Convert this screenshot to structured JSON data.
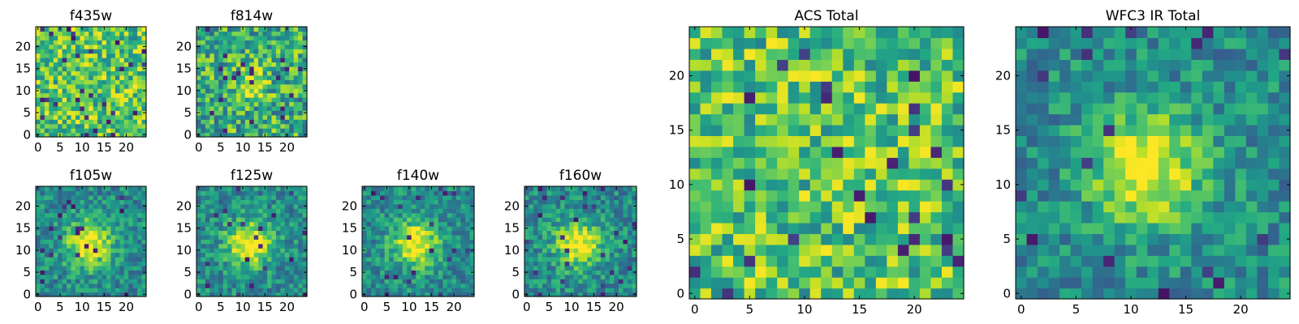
{
  "chart_data": [
    {
      "type": "heatmap",
      "title": "f435w",
      "xlim": [
        0,
        24
      ],
      "ylim": [
        0,
        24
      ],
      "xticks": [
        "0",
        "5",
        "10",
        "15",
        "20"
      ],
      "yticks": [
        "0",
        "5",
        "10",
        "15",
        "20"
      ],
      "colormap": "viridis",
      "pattern": "noise",
      "seed": 11
    },
    {
      "type": "heatmap",
      "title": "f814w",
      "xlim": [
        0,
        24
      ],
      "ylim": [
        0,
        24
      ],
      "xticks": [
        "0",
        "5",
        "10",
        "15",
        "20"
      ],
      "yticks": [
        "0",
        "5",
        "10",
        "15",
        "20"
      ],
      "colormap": "viridis",
      "pattern": "faint-source",
      "seed": 23
    },
    {
      "type": "heatmap",
      "title": "f105w",
      "xlim": [
        0,
        24
      ],
      "ylim": [
        0,
        24
      ],
      "xticks": [
        "0",
        "5",
        "10",
        "15",
        "20"
      ],
      "yticks": [
        "0",
        "5",
        "10",
        "15",
        "20"
      ],
      "colormap": "viridis",
      "pattern": "central-source",
      "seed": 37
    },
    {
      "type": "heatmap",
      "title": "f125w",
      "xlim": [
        0,
        24
      ],
      "ylim": [
        0,
        24
      ],
      "xticks": [
        "0",
        "5",
        "10",
        "15",
        "20"
      ],
      "yticks": [
        "0",
        "5",
        "10",
        "15",
        "20"
      ],
      "colormap": "viridis",
      "pattern": "central-source",
      "seed": 41
    },
    {
      "type": "heatmap",
      "title": "f140w",
      "xlim": [
        0,
        24
      ],
      "ylim": [
        0,
        24
      ],
      "xticks": [
        "0",
        "5",
        "10",
        "15",
        "20"
      ],
      "yticks": [
        "0",
        "5",
        "10",
        "15",
        "20"
      ],
      "colormap": "viridis",
      "pattern": "central-source",
      "seed": 53
    },
    {
      "type": "heatmap",
      "title": "f160w",
      "xlim": [
        0,
        24
      ],
      "ylim": [
        0,
        24
      ],
      "xticks": [
        "0",
        "5",
        "10",
        "15",
        "20"
      ],
      "yticks": [
        "0",
        "5",
        "10",
        "15",
        "20"
      ],
      "colormap": "viridis",
      "pattern": "central-source",
      "seed": 67
    },
    {
      "type": "heatmap",
      "title": "ACS Total",
      "xlim": [
        0,
        24
      ],
      "ylim": [
        0,
        24
      ],
      "xticks": [
        "0",
        "5",
        "10",
        "15",
        "20"
      ],
      "yticks": [
        "0",
        "5",
        "10",
        "15",
        "20"
      ],
      "colormap": "viridis",
      "pattern": "noise",
      "seed": 79
    },
    {
      "type": "heatmap",
      "title": "WFC3 IR Total",
      "xlim": [
        0,
        24
      ],
      "ylim": [
        0,
        24
      ],
      "xticks": [
        "0",
        "5",
        "10",
        "15",
        "20"
      ],
      "yticks": [
        "0",
        "5",
        "10",
        "15",
        "20"
      ],
      "colormap": "viridis",
      "pattern": "central-source",
      "seed": 97
    }
  ]
}
